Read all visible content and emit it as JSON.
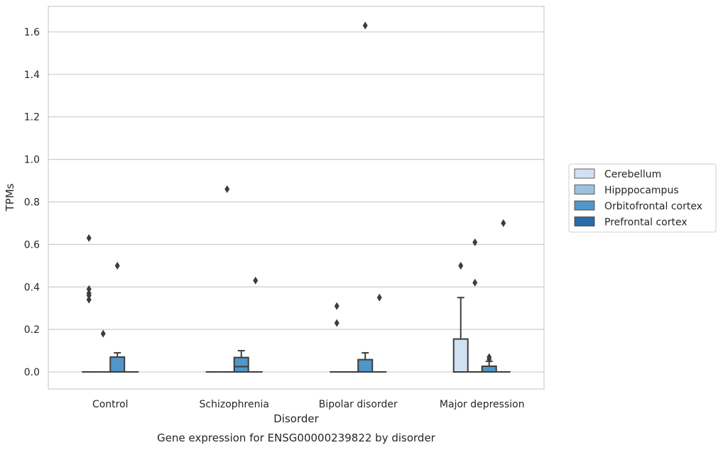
{
  "chart_data": {
    "type": "boxplot",
    "title": "",
    "caption": "Gene expression for ENSG00000239822 by disorder",
    "xlabel": "Disorder",
    "ylabel": "TPMs",
    "ylim": [
      -0.08,
      1.72
    ],
    "yticks": [
      "0.0",
      "0.2",
      "0.4",
      "0.6",
      "0.8",
      "1.0",
      "1.2",
      "1.4",
      "1.6"
    ],
    "grid": "horizontal",
    "legend_position": "right",
    "categories": [
      "Control",
      "Schizophrenia",
      "Bipolar disorder",
      "Major depression"
    ],
    "series": [
      {
        "name": "Cerebellum",
        "color": "#d0e1f2",
        "boxes": [
          {
            "q1": 0,
            "median": 0,
            "q3": 0,
            "whislo": 0,
            "whishi": 0,
            "fliers": [
              0.36,
              0.37,
              0.39,
              0.34,
              0.63
            ]
          },
          {
            "q1": 0,
            "median": 0,
            "q3": 0,
            "whislo": 0,
            "whishi": 0,
            "fliers": []
          },
          {
            "q1": 0,
            "median": 0,
            "q3": 0,
            "whislo": 0,
            "whishi": 0,
            "fliers": [
              0.31,
              0.23
            ]
          },
          {
            "q1": 0,
            "median": 0,
            "q3": 0.155,
            "whislo": 0,
            "whishi": 0.35,
            "fliers": [
              0.5
            ]
          }
        ]
      },
      {
        "name": "Hipppocampus",
        "color": "#9ac3de",
        "boxes": [
          {
            "q1": 0,
            "median": 0,
            "q3": 0,
            "whislo": 0,
            "whishi": 0,
            "fliers": [
              0.18
            ]
          },
          {
            "q1": 0,
            "median": 0,
            "q3": 0,
            "whislo": 0,
            "whishi": 0,
            "fliers": [
              0.86
            ]
          },
          {
            "q1": 0,
            "median": 0,
            "q3": 0,
            "whislo": 0,
            "whishi": 0,
            "fliers": []
          },
          {
            "q1": 0,
            "median": 0,
            "q3": 0,
            "whislo": 0,
            "whishi": 0,
            "fliers": [
              0.61,
              0.42
            ]
          }
        ]
      },
      {
        "name": "Orbitofrontal cortex",
        "color": "#5096c7",
        "boxes": [
          {
            "q1": 0,
            "median": 0,
            "q3": 0.07,
            "whislo": 0,
            "whishi": 0.09,
            "fliers": [
              0.5
            ]
          },
          {
            "q1": 0,
            "median": 0.025,
            "q3": 0.068,
            "whislo": 0,
            "whishi": 0.1,
            "fliers": []
          },
          {
            "q1": 0,
            "median": 0,
            "q3": 0.058,
            "whislo": 0,
            "whishi": 0.09,
            "fliers": [
              1.63
            ]
          },
          {
            "q1": 0,
            "median": 0,
            "q3": 0.027,
            "whislo": 0,
            "whishi": 0.05,
            "fliers": [
              0.06,
              0.07
            ]
          }
        ]
      },
      {
        "name": "Prefrontal cortex",
        "color": "#2b6aa8",
        "boxes": [
          {
            "q1": 0,
            "median": 0,
            "q3": 0,
            "whislo": 0,
            "whishi": 0,
            "fliers": []
          },
          {
            "q1": 0,
            "median": 0,
            "q3": 0,
            "whislo": 0,
            "whishi": 0,
            "fliers": [
              0.43
            ]
          },
          {
            "q1": 0,
            "median": 0,
            "q3": 0,
            "whislo": 0,
            "whishi": 0,
            "fliers": [
              0.35
            ]
          },
          {
            "q1": 0,
            "median": 0,
            "q3": 0,
            "whislo": 0,
            "whishi": 0,
            "fliers": [
              0.7
            ]
          }
        ]
      }
    ]
  }
}
